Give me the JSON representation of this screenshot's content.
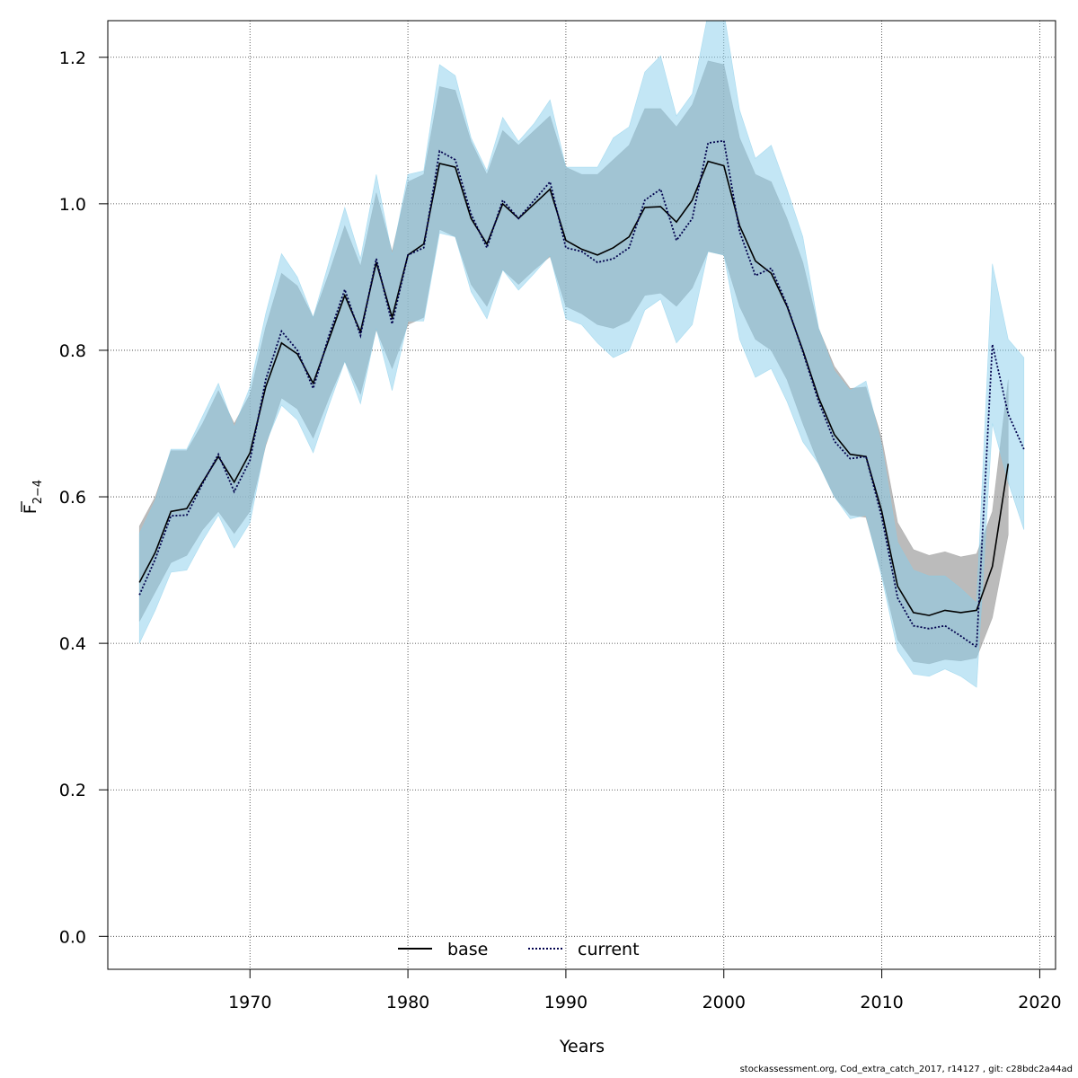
{
  "chart_data": {
    "type": "line",
    "xlabel": "Years",
    "ylabel_main": "F",
    "ylabel_sub": "2−4",
    "xlim": [
      1961,
      2021
    ],
    "ylim": [
      -0.045,
      1.25
    ],
    "xticks": [
      1970,
      1980,
      1990,
      2000,
      2010,
      2020
    ],
    "yticks": [
      0.0,
      0.2,
      0.4,
      0.6,
      0.8,
      1.0,
      1.2
    ],
    "ytick_labels": [
      "0.0",
      "0.2",
      "0.4",
      "0.6",
      "0.8",
      "1.0",
      "1.2"
    ],
    "grid": true,
    "legend_position": "bottom-center",
    "colors": {
      "base_line": "#000000",
      "base_band": "#9e9e9e",
      "current_line": "#00004c",
      "current_band": "#87ceeb"
    },
    "series": [
      {
        "name": "base",
        "line_style": "solid",
        "x": [
          1963,
          1964,
          1965,
          1966,
          1967,
          1968,
          1969,
          1970,
          1971,
          1972,
          1973,
          1974,
          1975,
          1976,
          1977,
          1978,
          1979,
          1980,
          1981,
          1982,
          1983,
          1984,
          1985,
          1986,
          1987,
          1988,
          1989,
          1990,
          1991,
          1992,
          1993,
          1994,
          1995,
          1996,
          1997,
          1998,
          1999,
          2000,
          2001,
          2002,
          2003,
          2004,
          2005,
          2006,
          2007,
          2008,
          2009,
          2010,
          2011,
          2012,
          2013,
          2014,
          2015,
          2016,
          2017,
          2018
        ],
        "values": [
          0.483,
          0.524,
          0.58,
          0.584,
          0.62,
          0.655,
          0.62,
          0.66,
          0.75,
          0.81,
          0.795,
          0.755,
          0.815,
          0.875,
          0.825,
          0.92,
          0.845,
          0.93,
          0.945,
          1.055,
          1.05,
          0.98,
          0.945,
          1.0,
          0.98,
          1.0,
          1.02,
          0.95,
          0.938,
          0.93,
          0.94,
          0.955,
          0.995,
          0.996,
          0.975,
          1.005,
          1.058,
          1.052,
          0.97,
          0.922,
          0.905,
          0.86,
          0.8,
          0.735,
          0.685,
          0.658,
          0.655,
          0.58,
          0.478,
          0.442,
          0.438,
          0.445,
          0.442,
          0.445,
          0.505,
          0.645
        ],
        "lower": [
          0.43,
          0.47,
          0.51,
          0.52,
          0.555,
          0.58,
          0.55,
          0.58,
          0.67,
          0.735,
          0.72,
          0.68,
          0.735,
          0.785,
          0.74,
          0.828,
          0.775,
          0.835,
          0.845,
          0.965,
          0.955,
          0.89,
          0.86,
          0.91,
          0.89,
          0.91,
          0.928,
          0.86,
          0.85,
          0.835,
          0.83,
          0.84,
          0.875,
          0.878,
          0.86,
          0.885,
          0.935,
          0.93,
          0.86,
          0.815,
          0.8,
          0.76,
          0.7,
          0.645,
          0.6,
          0.575,
          0.572,
          0.495,
          0.405,
          0.375,
          0.372,
          0.378,
          0.376,
          0.38,
          0.435,
          0.548
        ],
        "upper": [
          0.56,
          0.6,
          0.663,
          0.663,
          0.7,
          0.745,
          0.7,
          0.74,
          0.832,
          0.905,
          0.888,
          0.845,
          0.905,
          0.97,
          0.915,
          1.015,
          0.935,
          1.03,
          1.04,
          1.16,
          1.155,
          1.085,
          1.04,
          1.1,
          1.08,
          1.1,
          1.12,
          1.05,
          1.04,
          1.04,
          1.06,
          1.08,
          1.13,
          1.13,
          1.105,
          1.135,
          1.195,
          1.19,
          1.09,
          1.04,
          1.03,
          0.98,
          0.92,
          0.83,
          0.778,
          0.748,
          0.75,
          0.68,
          0.565,
          0.528,
          0.52,
          0.525,
          0.518,
          0.522,
          0.58,
          0.76
        ]
      },
      {
        "name": "current",
        "line_style": "dotted",
        "x": [
          1963,
          1964,
          1965,
          1966,
          1967,
          1968,
          1969,
          1970,
          1971,
          1972,
          1973,
          1974,
          1975,
          1976,
          1977,
          1978,
          1979,
          1980,
          1981,
          1982,
          1983,
          1984,
          1985,
          1986,
          1987,
          1988,
          1989,
          1990,
          1991,
          1992,
          1993,
          1994,
          1995,
          1996,
          1997,
          1998,
          1999,
          2000,
          2001,
          2002,
          2003,
          2004,
          2005,
          2006,
          2007,
          2008,
          2009,
          2010,
          2011,
          2012,
          2013,
          2014,
          2015,
          2016,
          2017,
          2018,
          2019
        ],
        "values": [
          0.466,
          0.515,
          0.574,
          0.575,
          0.618,
          0.658,
          0.607,
          0.65,
          0.76,
          0.826,
          0.8,
          0.748,
          0.82,
          0.883,
          0.82,
          0.925,
          0.836,
          0.93,
          0.94,
          1.072,
          1.06,
          0.986,
          0.94,
          1.005,
          0.98,
          1.005,
          1.03,
          0.94,
          0.935,
          0.92,
          0.925,
          0.94,
          1.005,
          1.02,
          0.95,
          0.98,
          1.083,
          1.086,
          0.962,
          0.902,
          0.912,
          0.862,
          0.798,
          0.73,
          0.676,
          0.652,
          0.655,
          0.572,
          0.462,
          0.424,
          0.42,
          0.424,
          0.41,
          0.395,
          0.808,
          0.713,
          0.665
        ],
        "lower": [
          0.4,
          0.445,
          0.497,
          0.5,
          0.54,
          0.575,
          0.53,
          0.565,
          0.673,
          0.725,
          0.705,
          0.66,
          0.725,
          0.785,
          0.727,
          0.83,
          0.745,
          0.84,
          0.84,
          0.96,
          0.955,
          0.88,
          0.843,
          0.91,
          0.882,
          0.905,
          0.93,
          0.843,
          0.835,
          0.81,
          0.79,
          0.8,
          0.855,
          0.87,
          0.81,
          0.835,
          0.935,
          0.93,
          0.815,
          0.763,
          0.775,
          0.73,
          0.675,
          0.645,
          0.6,
          0.57,
          0.575,
          0.49,
          0.39,
          0.358,
          0.355,
          0.365,
          0.355,
          0.34,
          0.7,
          0.62,
          0.555
        ],
        "upper": [
          0.55,
          0.595,
          0.665,
          0.665,
          0.71,
          0.755,
          0.695,
          0.75,
          0.85,
          0.932,
          0.9,
          0.845,
          0.92,
          0.995,
          0.925,
          1.04,
          0.93,
          1.04,
          1.045,
          1.19,
          1.175,
          1.09,
          1.045,
          1.118,
          1.085,
          1.11,
          1.142,
          1.05,
          1.05,
          1.05,
          1.09,
          1.105,
          1.18,
          1.202,
          1.12,
          1.15,
          1.26,
          1.262,
          1.128,
          1.062,
          1.08,
          1.02,
          0.955,
          0.83,
          0.772,
          0.745,
          0.758,
          0.67,
          0.538,
          0.5,
          0.492,
          0.492,
          0.475,
          0.455,
          0.918,
          0.815,
          0.79
        ]
      }
    ],
    "legend": [
      {
        "label": "base",
        "style": "solid"
      },
      {
        "label": "current",
        "style": "dotted"
      }
    ]
  },
  "footer": "stockassessment.org, Cod_extra_catch_2017, r14127 , git: c28bdc2a44ad"
}
